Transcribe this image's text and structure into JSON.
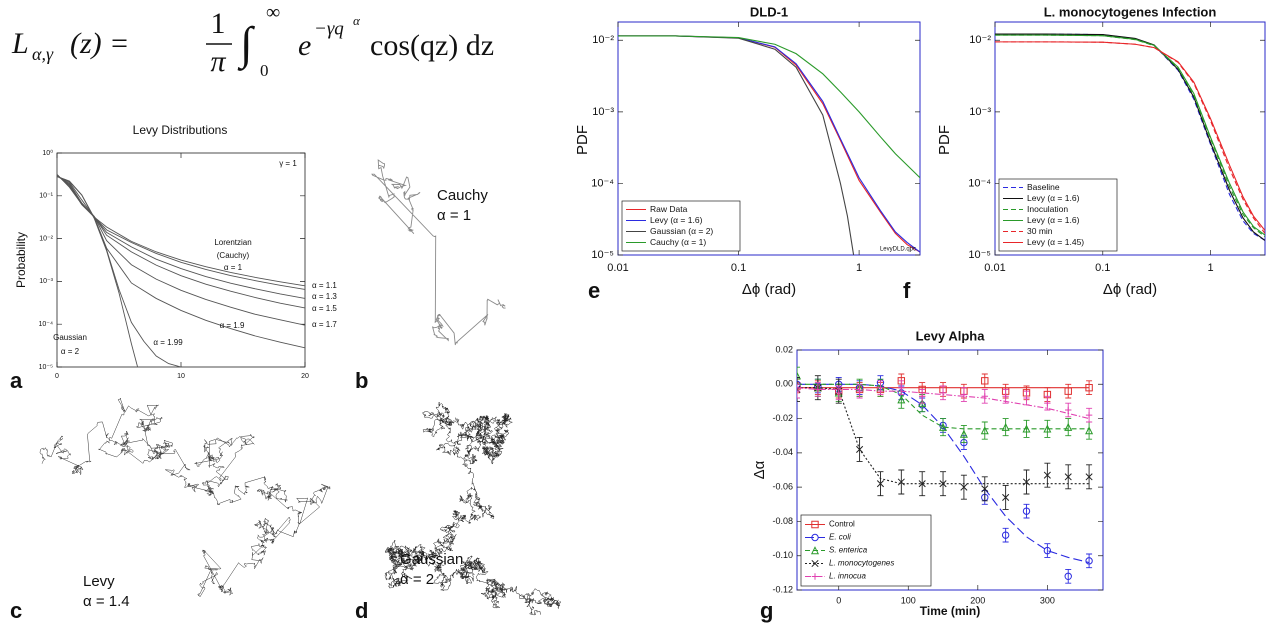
{
  "formula": {
    "lhs": "L",
    "lhs_sub": "α,γ",
    "lhs_arg": "(z) =",
    "frac_num": "1",
    "frac_den": "π",
    "integral": "∫",
    "lower": "0",
    "upper": "∞",
    "base": "e",
    "exp": "−γq",
    "exp_sup": "α",
    "rest": "cos(qz) dz"
  },
  "panel_labels": [
    "a",
    "b",
    "c",
    "d",
    "e",
    "f",
    "g"
  ],
  "walks": [
    {
      "name": "Cauchy",
      "alpha_label": "α = 1"
    },
    {
      "name": "Levy",
      "alpha_label": "α = 1.4"
    },
    {
      "name": "Gaussian",
      "alpha_label": "α = 2"
    }
  ],
  "chart_data": [
    {
      "type": "line",
      "title": "Levy Distributions",
      "ylabel": "Probability",
      "log_y": true,
      "xlim": [
        0,
        20
      ],
      "xticks": [
        0,
        10,
        20
      ],
      "ylim": [
        1e-05,
        1
      ],
      "yticks": [
        {
          "value": 1e-05,
          "label": "10⁻⁵"
        },
        {
          "value": 0.0001,
          "label": "10⁻⁴"
        },
        {
          "value": 0.001,
          "label": "10⁻³"
        },
        {
          "value": 0.01,
          "label": "10⁻²"
        },
        {
          "value": 0.1,
          "label": "10⁻¹"
        },
        {
          "value": 1,
          "label": "10⁰"
        }
      ],
      "annotations": [
        "γ = 1",
        "Lorentzian",
        "(Cauchy)",
        "Gaussian"
      ],
      "series": [
        {
          "name": "α = 1",
          "color": "#555555",
          "x": [
            0,
            1,
            2,
            3,
            4,
            6,
            8,
            10,
            12,
            14,
            16,
            18,
            20
          ],
          "values": [
            0.318,
            0.159,
            0.0637,
            0.0318,
            0.0187,
            0.0086,
            0.0049,
            0.00315,
            0.0022,
            0.00162,
            0.00124,
            0.00098,
            0.00079
          ]
        },
        {
          "name": "α = 1.1",
          "color": "#555555",
          "x": [
            0,
            1,
            2,
            3,
            4,
            6,
            8,
            10,
            12,
            14,
            16,
            18,
            20
          ],
          "values": [
            0.312,
            0.165,
            0.063,
            0.032,
            0.016,
            0.0081,
            0.0045,
            0.0028,
            0.0019,
            0.00137,
            0.00104,
            0.00081,
            0.00065
          ]
        },
        {
          "name": "α = 1.3",
          "color": "#555555",
          "x": [
            0,
            1,
            2,
            3,
            4,
            6,
            8,
            10,
            12,
            14,
            16,
            18,
            20
          ],
          "values": [
            0.302,
            0.175,
            0.062,
            0.032,
            0.014,
            0.0064,
            0.0033,
            0.002,
            0.0013,
            0.00091,
            0.00067,
            0.00051,
            0.0004
          ]
        },
        {
          "name": "α = 1.5",
          "color": "#555555",
          "x": [
            0,
            1,
            2,
            3,
            4,
            6,
            8,
            10,
            12,
            14,
            16,
            18,
            20
          ],
          "values": [
            0.294,
            0.185,
            0.063,
            0.033,
            0.012,
            0.0049,
            0.0024,
            0.00136,
            0.00086,
            0.00059,
            0.00042,
            0.00031,
            0.00024
          ]
        },
        {
          "name": "α = 1.7",
          "color": "#555555",
          "x": [
            0,
            1,
            2,
            3,
            4,
            6,
            8,
            10,
            12,
            14,
            16,
            18,
            20
          ],
          "values": [
            0.288,
            0.197,
            0.068,
            0.033,
            0.009,
            0.00245,
            0.00113,
            0.00062,
            0.00038,
            0.00025,
            0.00017,
            0.000127,
            9.5e-05
          ]
        },
        {
          "name": "α = 1.9",
          "color": "#555555",
          "x": [
            0,
            1,
            2,
            3,
            4,
            6,
            8,
            10,
            12,
            14,
            16,
            18,
            20
          ],
          "values": [
            0.284,
            0.21,
            0.08,
            0.032,
            0.006,
            0.00092,
            0.0004,
            0.00021,
            0.000123,
            7.9e-05,
            5.3e-05,
            3.8e-05,
            2.8e-05
          ]
        },
        {
          "name": "α = 1.99",
          "color": "#555555",
          "x": [
            0,
            1,
            2,
            3,
            4,
            5,
            6,
            7,
            8,
            9,
            10
          ],
          "values": [
            0.283,
            0.22,
            0.104,
            0.031,
            0.0055,
            0.00065,
            0.00011,
            4e-05,
            1.8e-05,
            1.2e-05,
            1e-05
          ]
        },
        {
          "name": "α = 2",
          "color": "#555555",
          "x": [
            0,
            1,
            2,
            3,
            4,
            5,
            6,
            6.5
          ],
          "values": [
            0.282,
            0.22,
            0.104,
            0.0297,
            0.0052,
            0.00054,
            3.5e-05,
            1e-05
          ]
        }
      ]
    },
    {
      "type": "line",
      "title": "DLD-1",
      "ylabel": "PDF",
      "xlabel": "Δϕ (rad)",
      "log_x": true,
      "log_y": true,
      "xlim": [
        0.01,
        3.2
      ],
      "xticks": [
        0.01,
        0.1,
        1
      ],
      "ylim": [
        1e-05,
        0.018
      ],
      "yticks": [
        {
          "value": 1e-05,
          "label": "10⁻⁵"
        },
        {
          "value": 0.0001,
          "label": "10⁻⁴"
        },
        {
          "value": 0.001,
          "label": "10⁻³"
        },
        {
          "value": 0.01,
          "label": "10⁻²"
        }
      ],
      "legend": "lower left",
      "annotations": [
        "LevyDLD.qpc"
      ],
      "x": [
        0.01,
        0.03,
        0.1,
        0.2,
        0.3,
        0.5,
        0.7,
        1,
        1.5,
        2,
        2.5,
        3.2
      ],
      "series": [
        {
          "name": "Raw Data",
          "color": "#e8262a",
          "values": [
            0.0115,
            0.0115,
            0.0108,
            0.008,
            0.0045,
            0.0013,
            0.0004,
            0.00011,
            4e-05,
            2e-05,
            1.4e-05,
            1.1e-05
          ]
        },
        {
          "name": "Levy (α = 1.6)",
          "color": "#2b2be0",
          "values": [
            0.0115,
            0.0115,
            0.0108,
            0.0081,
            0.0047,
            0.0014,
            0.00042,
            0.00012,
            4.2e-05,
            2.1e-05,
            1.5e-05,
            1.1e-05
          ]
        },
        {
          "name": "Gaussian (α = 2)",
          "color": "#444444",
          "x": [
            0.01,
            0.03,
            0.1,
            0.2,
            0.3,
            0.5,
            0.7,
            0.8,
            0.9
          ],
          "values": [
            0.0115,
            0.0115,
            0.0107,
            0.0075,
            0.0042,
            0.0009,
            0.0001,
            3.5e-05,
            1e-05
          ]
        },
        {
          "name": "Cauchy (α = 1)",
          "color": "#2a9a2a",
          "values": [
            0.0115,
            0.0115,
            0.0109,
            0.0088,
            0.0065,
            0.0034,
            0.0019,
            0.001,
            0.00045,
            0.00026,
            0.00018,
            0.00012
          ]
        }
      ]
    },
    {
      "type": "line",
      "title": "L. monocytogenes Infection",
      "ylabel": "PDF",
      "xlabel": "Δϕ (rad)",
      "log_x": true,
      "log_y": true,
      "xlim": [
        0.01,
        3.2
      ],
      "xticks": [
        0.01,
        0.1,
        1
      ],
      "ylim": [
        1e-05,
        0.018
      ],
      "yticks": [
        {
          "value": 1e-05,
          "label": "10⁻⁵"
        },
        {
          "value": 0.0001,
          "label": "10⁻⁴"
        },
        {
          "value": 0.001,
          "label": "10⁻³"
        },
        {
          "value": 0.01,
          "label": "10⁻²"
        }
      ],
      "legend": "lower left",
      "x": [
        0.01,
        0.03,
        0.1,
        0.2,
        0.3,
        0.5,
        0.7,
        1,
        1.5,
        2,
        2.5,
        3.2
      ],
      "series": [
        {
          "name": "Baseline",
          "color": "#2b2be0",
          "dash": true,
          "values": [
            0.0122,
            0.0122,
            0.012,
            0.0105,
            0.0085,
            0.0038,
            0.0015,
            0.00035,
            7e-05,
            3e-05,
            2e-05,
            1.6e-05
          ]
        },
        {
          "name": "Levy (α = 1.6)",
          "color": "#111111",
          "values": [
            0.0122,
            0.0122,
            0.012,
            0.0106,
            0.0086,
            0.0039,
            0.0016,
            0.00037,
            8e-05,
            3.3e-05,
            2.1e-05,
            1.6e-05
          ]
        },
        {
          "name": "Inoculation",
          "color": "#2a9a2a",
          "dash": true,
          "values": [
            0.0118,
            0.0118,
            0.0116,
            0.0102,
            0.0084,
            0.0041,
            0.0017,
            0.00042,
            9e-05,
            3.7e-05,
            2.4e-05,
            1.8e-05
          ]
        },
        {
          "name": "Levy (α = 1.6)",
          "color": "#2a9a2a",
          "values": [
            0.0118,
            0.0118,
            0.0116,
            0.0103,
            0.0085,
            0.0042,
            0.0018,
            0.00044,
            0.0001,
            4e-05,
            2.5e-05,
            1.9e-05
          ]
        },
        {
          "name": "30 min",
          "color": "#e8262a",
          "dash": true,
          "values": [
            0.0095,
            0.0095,
            0.0094,
            0.0088,
            0.0079,
            0.0049,
            0.0025,
            0.00075,
            0.00016,
            6e-05,
            3.3e-05,
            2e-05
          ]
        },
        {
          "name": "Levy (α = 1.45)",
          "color": "#e8262a",
          "values": [
            0.0095,
            0.0095,
            0.0094,
            0.0088,
            0.0079,
            0.005,
            0.0026,
            0.0008,
            0.00018,
            6.5e-05,
            3.5e-05,
            2.2e-05
          ]
        }
      ]
    },
    {
      "type": "errorbar",
      "title": "Levy Alpha",
      "xlabel": "Time (min)",
      "ylabel": "Δα",
      "xlim": [
        -60,
        380
      ],
      "xticks": [
        0,
        100,
        200,
        300
      ],
      "ylim": [
        -0.12,
        0.02
      ],
      "yticks": [
        0.02,
        {
          "value": 0,
          "label": "0.00"
        },
        -0.02,
        -0.04,
        -0.06,
        -0.08,
        {
          "value": -0.1,
          "label": "-0.10"
        },
        -0.12
      ],
      "legend": "lower left",
      "x": [
        -60,
        -30,
        0,
        30,
        60,
        90,
        120,
        150,
        180,
        210,
        240,
        270,
        300,
        330,
        360
      ],
      "series": [
        {
          "name": "Control",
          "color": "#e03030",
          "marker": "square",
          "dash": "solid",
          "values": [
            -0.001,
            -0.002,
            -0.004,
            -0.003,
            -0.003,
            0.002,
            -0.003,
            -0.003,
            -0.004,
            0.002,
            -0.004,
            -0.005,
            -0.006,
            -0.004,
            -0.002
          ],
          "errors": [
            0.004,
            0.004,
            0.004,
            0.004,
            0.004,
            0.004,
            0.004,
            0.004,
            0.004,
            0.004,
            0.004,
            0.004,
            0.004,
            0.004,
            0.004
          ],
          "fit": [
            -0.002,
            -0.002,
            -0.002,
            -0.002,
            -0.002,
            -0.002,
            -0.002,
            -0.002,
            -0.002,
            -0.002,
            -0.002,
            -0.002,
            -0.002,
            -0.002,
            -0.002
          ]
        },
        {
          "name": "E. coli",
          "color": "#2b2be0",
          "marker": "circle",
          "dash": "long",
          "values": [
            0,
            -0.001,
            0,
            -0.002,
            0.001,
            -0.005,
            -0.012,
            -0.024,
            -0.034,
            -0.066,
            -0.088,
            -0.074,
            -0.097,
            -0.112,
            -0.103
          ],
          "errors": [
            0.004,
            0.004,
            0.004,
            0.004,
            0.004,
            0.004,
            0.004,
            0.004,
            0.004,
            0.004,
            0.004,
            0.004,
            0.004,
            0.004,
            0.004
          ],
          "fit": [
            0,
            0,
            0,
            0,
            -0.001,
            -0.004,
            -0.012,
            -0.025,
            -0.042,
            -0.061,
            -0.077,
            -0.089,
            -0.097,
            -0.101,
            -0.104
          ]
        },
        {
          "name": "S. enterica",
          "color": "#2a9a2a",
          "marker": "triangle",
          "dash": "medium",
          "values": [
            0.005,
            -0.002,
            -0.005,
            -0.002,
            -0.002,
            -0.009,
            -0.011,
            -0.025,
            -0.029,
            -0.027,
            -0.025,
            -0.026,
            -0.026,
            -0.025,
            -0.027
          ],
          "errors": [
            0.005,
            0.005,
            0.005,
            0.005,
            0.005,
            0.005,
            0.005,
            0.005,
            0.005,
            0.005,
            0.005,
            0.005,
            0.005,
            0.005,
            0.005
          ],
          "fit": [
            0,
            0,
            0,
            0,
            -0.001,
            -0.006,
            -0.018,
            -0.025,
            -0.026,
            -0.026,
            -0.026,
            -0.026,
            -0.026,
            -0.026,
            -0.026
          ]
        },
        {
          "name": "L. monocytogenes",
          "color": "#222222",
          "marker": "x",
          "dash": "dot",
          "values": [
            -0.003,
            -0.002,
            -0.004,
            -0.038,
            -0.058,
            -0.057,
            -0.058,
            -0.058,
            -0.06,
            -0.061,
            -0.066,
            -0.057,
            -0.053,
            -0.054,
            -0.054
          ],
          "errors": [
            0.007,
            0.007,
            0.007,
            0.007,
            0.007,
            0.007,
            0.007,
            0.007,
            0.007,
            0.007,
            0.007,
            0.007,
            0.007,
            0.007,
            0.007
          ],
          "fit": [
            -0.002,
            -0.002,
            -0.003,
            -0.038,
            -0.055,
            -0.058,
            -0.058,
            -0.058,
            -0.058,
            -0.058,
            -0.058,
            -0.058,
            -0.058,
            -0.058,
            -0.058
          ]
        },
        {
          "name": "L. innocua",
          "color": "#e040b0",
          "marker": "plus",
          "dash": "dashdot",
          "values": [
            -0.004,
            -0.003,
            -0.005,
            -0.004,
            -0.002,
            -0.002,
            -0.007,
            -0.005,
            -0.006,
            -0.007,
            -0.007,
            -0.008,
            -0.011,
            -0.015,
            -0.018
          ],
          "errors": [
            0.004,
            0.004,
            0.004,
            0.004,
            0.004,
            0.004,
            0.004,
            0.004,
            0.004,
            0.004,
            0.004,
            0.004,
            0.004,
            0.004,
            0.004
          ],
          "fit": [
            -0.002,
            -0.003,
            -0.003,
            -0.003,
            -0.004,
            -0.004,
            -0.005,
            -0.006,
            -0.007,
            -0.008,
            -0.01,
            -0.012,
            -0.014,
            -0.017,
            -0.02
          ]
        }
      ]
    }
  ]
}
